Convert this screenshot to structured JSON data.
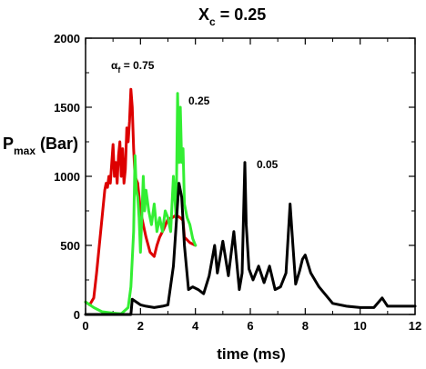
{
  "chart_data": {
    "type": "line",
    "title_main": "X",
    "title_sub": "c",
    "title_rest": " = 0.25",
    "xlabel": "time (ms)",
    "ylabel_main": "P",
    "ylabel_sub": "max",
    "ylabel_rest": " (Bar)",
    "xlim": [
      0,
      12
    ],
    "ylim": [
      0,
      2000
    ],
    "xticks": [
      "0",
      "2",
      "4",
      "6",
      "8",
      "10",
      "12"
    ],
    "yticks": [
      "0",
      "500",
      "1000",
      "1500",
      "2000"
    ],
    "grid": false,
    "annotations": {
      "red_greek": "α",
      "red_sub": "f",
      "red_rest": " = 0.75",
      "green": "0.25",
      "black": "0.05"
    },
    "series": [
      {
        "color": "#dd0000",
        "x": [
          0.0,
          0.15,
          0.3,
          0.4,
          0.5,
          0.6,
          0.65,
          0.7,
          0.75,
          0.8,
          0.85,
          0.9,
          1.0,
          1.05,
          1.1,
          1.15,
          1.2,
          1.25,
          1.3,
          1.35,
          1.4,
          1.45,
          1.5,
          1.55,
          1.6,
          1.65,
          1.7,
          1.75,
          1.8,
          1.9,
          2.0,
          2.1,
          2.2,
          2.35,
          2.5,
          2.6,
          2.7,
          2.85,
          3.0,
          3.15,
          3.3,
          3.45,
          3.55,
          3.6,
          3.7,
          3.8,
          3.9,
          4.0
        ],
        "y": [
          90,
          70,
          120,
          300,
          500,
          700,
          800,
          900,
          950,
          920,
          1000,
          950,
          1230,
          1000,
          1100,
          950,
          1150,
          1250,
          1000,
          1200,
          950,
          1050,
          1350,
          1250,
          1400,
          1630,
          1500,
          1200,
          1000,
          950,
          750,
          650,
          560,
          450,
          420,
          500,
          560,
          620,
          690,
          700,
          720,
          700,
          680,
          560,
          540,
          520,
          510,
          500
        ]
      },
      {
        "color": "#33ee33",
        "x": [
          0.0,
          0.3,
          0.6,
          1.0,
          1.3,
          1.55,
          1.65,
          1.75,
          1.8,
          1.85,
          1.9,
          1.95,
          2.0,
          2.05,
          2.1,
          2.15,
          2.2,
          2.3,
          2.4,
          2.5,
          2.6,
          2.7,
          2.8,
          2.9,
          3.0,
          3.1,
          3.2,
          3.3,
          3.35,
          3.4,
          3.45,
          3.5,
          3.55,
          3.6,
          3.7,
          3.8,
          3.9,
          4.0
        ],
        "y": [
          90,
          50,
          20,
          10,
          5,
          50,
          200,
          600,
          1150,
          900,
          850,
          700,
          450,
          700,
          1000,
          750,
          900,
          750,
          650,
          800,
          600,
          700,
          600,
          750,
          700,
          600,
          1000,
          700,
          1600,
          1100,
          1500,
          1100,
          1200,
          800,
          700,
          650,
          550,
          500
        ]
      },
      {
        "color": "#000000",
        "x": [
          0.0,
          1.5,
          1.65,
          1.7,
          2.0,
          2.2,
          2.5,
          2.8,
          3.0,
          3.2,
          3.4,
          3.5,
          3.6,
          3.75,
          3.9,
          4.1,
          4.3,
          4.5,
          4.7,
          4.8,
          5.0,
          5.2,
          5.4,
          5.6,
          5.7,
          5.8,
          5.85,
          5.95,
          6.1,
          6.3,
          6.5,
          6.7,
          6.9,
          7.1,
          7.3,
          7.45,
          7.55,
          7.65,
          7.8,
          7.9,
          8.0,
          8.2,
          8.5,
          9.0,
          9.5,
          10.0,
          10.5,
          10.8,
          11.0,
          12.0
        ],
        "y": [
          0,
          0,
          0,
          110,
          70,
          60,
          50,
          60,
          70,
          350,
          950,
          850,
          500,
          180,
          200,
          180,
          150,
          280,
          500,
          300,
          530,
          280,
          600,
          180,
          300,
          1100,
          650,
          330,
          250,
          350,
          230,
          350,
          180,
          200,
          300,
          800,
          500,
          220,
          320,
          400,
          430,
          300,
          200,
          80,
          60,
          50,
          50,
          120,
          60,
          60
        ]
      }
    ]
  }
}
